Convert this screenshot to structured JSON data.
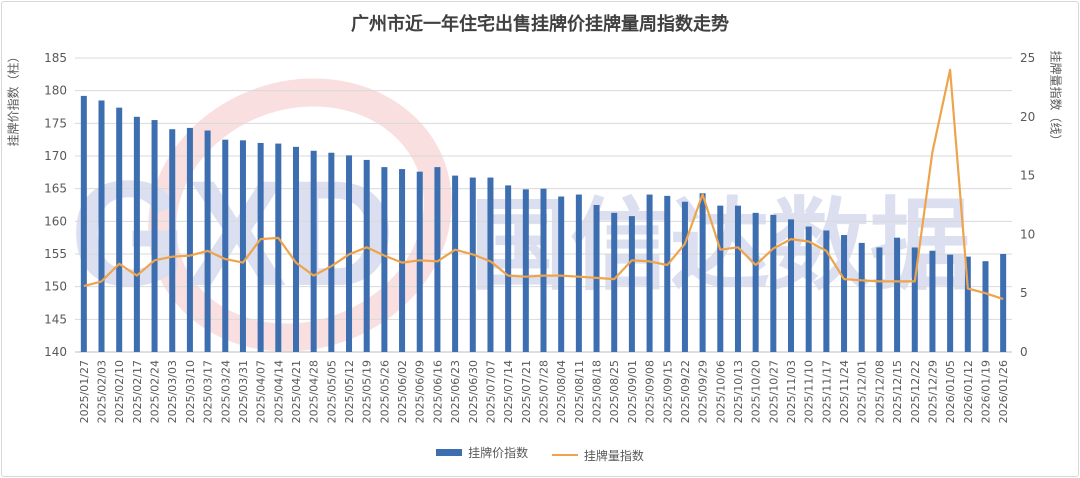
{
  "chart_data": {
    "type": "bar+line",
    "title": "广州市近一年住宅出售挂牌价挂牌量周指数走势",
    "ylabel_left": "挂牌价指数（柱）",
    "ylabel_right": "挂牌量指数（线）",
    "ylim_left": [
      140,
      185
    ],
    "yticks_left": [
      140,
      145,
      150,
      155,
      160,
      165,
      170,
      175,
      180,
      185
    ],
    "ylim_right": [
      0,
      25
    ],
    "yticks_right": [
      0,
      5,
      10,
      15,
      20,
      25
    ],
    "categories": [
      "2025/01/27",
      "2025/02/03",
      "2025/02/10",
      "2025/02/17",
      "2025/02/24",
      "2025/03/03",
      "2025/03/10",
      "2025/03/17",
      "2025/03/24",
      "2025/03/31",
      "2025/04/07",
      "2025/04/14",
      "2025/04/21",
      "2025/04/28",
      "2025/05/05",
      "2025/05/12",
      "2025/05/19",
      "2025/05/26",
      "2025/06/02",
      "2025/06/09",
      "2025/06/16",
      "2025/06/23",
      "2025/06/30",
      "2025/07/07",
      "2025/07/14",
      "2025/07/21",
      "2025/07/28",
      "2025/08/04",
      "2025/08/11",
      "2025/08/18",
      "2025/08/25",
      "2025/09/01",
      "2025/09/08",
      "2025/09/15",
      "2025/09/22",
      "2025/09/29",
      "2025/10/06",
      "2025/10/13",
      "2025/10/20",
      "2025/10/27",
      "2025/11/03",
      "2025/11/10",
      "2025/11/17",
      "2025/11/24",
      "2025/12/01",
      "2025/12/08",
      "2025/12/15",
      "2025/12/22",
      "2025/12/29",
      "2026/01/05",
      "2026/01/12",
      "2026/01/19",
      "2026/01/26"
    ],
    "series": [
      {
        "name": "挂牌价指数",
        "kind": "bar",
        "axis": "left",
        "color": "#3d6eb0",
        "values": [
          179.2,
          178.5,
          177.4,
          176.0,
          175.5,
          174.1,
          174.3,
          173.9,
          172.5,
          172.4,
          172.0,
          171.9,
          171.4,
          170.8,
          170.5,
          170.1,
          169.4,
          168.3,
          168.0,
          167.6,
          168.3,
          167.0,
          166.7,
          166.7,
          165.5,
          164.9,
          165.0,
          163.8,
          164.1,
          162.5,
          161.3,
          160.8,
          164.1,
          163.9,
          163.0,
          164.3,
          162.4,
          162.4,
          161.3,
          161.0,
          160.3,
          159.2,
          158.6,
          157.9,
          156.7,
          156.0,
          157.5,
          156.0,
          155.5,
          154.9,
          154.6,
          153.9,
          155.0
        ]
      },
      {
        "name": "挂牌量指数",
        "kind": "line",
        "axis": "right",
        "color": "#eea44c",
        "values": [
          5.6,
          6.0,
          7.5,
          6.5,
          7.8,
          8.1,
          8.2,
          8.6,
          7.9,
          7.6,
          9.6,
          9.7,
          7.6,
          6.5,
          7.3,
          8.3,
          8.9,
          8.2,
          7.6,
          7.8,
          7.7,
          8.7,
          8.3,
          7.7,
          6.5,
          6.4,
          6.5,
          6.5,
          6.4,
          6.3,
          6.2,
          7.8,
          7.7,
          7.4,
          9.2,
          13.4,
          8.7,
          8.9,
          7.4,
          8.8,
          9.6,
          9.4,
          8.6,
          6.2,
          6.1,
          6.0,
          6.0,
          6.0,
          17.0,
          24.0,
          5.4,
          5.0,
          4.5
        ]
      }
    ],
    "legend": {
      "position": "bottom",
      "items": [
        "挂牌价指数",
        "挂牌量指数"
      ]
    },
    "grid": true
  },
  "watermark": {
    "text": "国信达数据",
    "logo_text": "GXD"
  }
}
